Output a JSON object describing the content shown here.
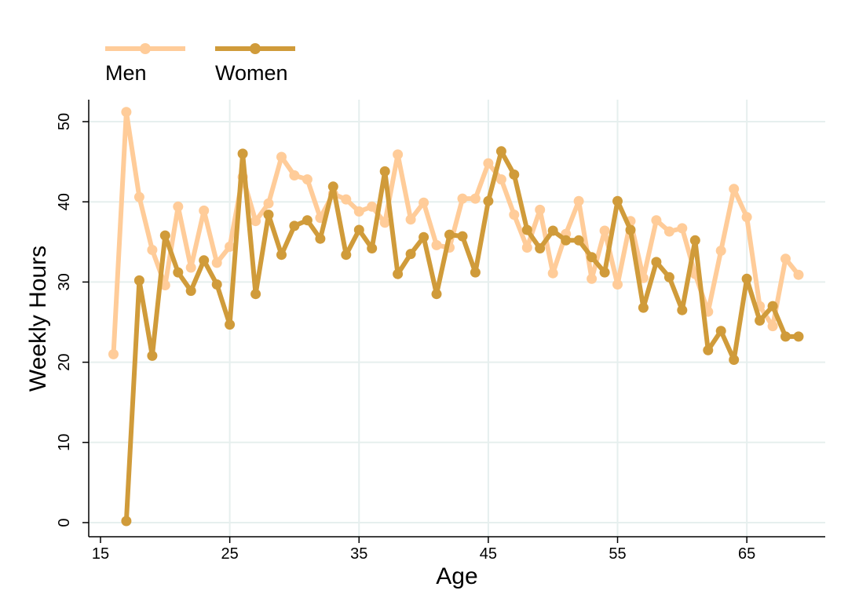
{
  "chart_data": {
    "type": "line",
    "title": "",
    "xlabel": "Age",
    "ylabel": "Weekly Hours",
    "xlim": [
      15,
      69
    ],
    "ylim": [
      0,
      52
    ],
    "xticks": [
      15,
      25,
      35,
      45,
      55,
      65
    ],
    "yticks": [
      0,
      10,
      20,
      30,
      40,
      50
    ],
    "grid": true,
    "legend_position": "top-left",
    "series": [
      {
        "name": "Men",
        "color": "#FFCC99",
        "points": [
          [
            16,
            21.0
          ],
          [
            17,
            51.2
          ],
          [
            18,
            40.6
          ],
          [
            19,
            34.0
          ],
          [
            20,
            29.6
          ],
          [
            21,
            39.4
          ],
          [
            22,
            31.8
          ],
          [
            23,
            38.9
          ],
          [
            24,
            32.4
          ],
          [
            25,
            34.4
          ],
          [
            26,
            43.1
          ],
          [
            27,
            37.6
          ],
          [
            28,
            39.8
          ],
          [
            29,
            45.6
          ],
          [
            30,
            43.3
          ],
          [
            31,
            42.8
          ],
          [
            32,
            38.0
          ],
          [
            33,
            41.0
          ],
          [
            34,
            40.3
          ],
          [
            35,
            38.8
          ],
          [
            36,
            39.4
          ],
          [
            37,
            37.4
          ],
          [
            38,
            45.9
          ],
          [
            39,
            37.8
          ],
          [
            40,
            39.9
          ],
          [
            41,
            34.6
          ],
          [
            42,
            34.3
          ],
          [
            43,
            40.4
          ],
          [
            44,
            40.4
          ],
          [
            45,
            44.8
          ],
          [
            46,
            42.8
          ],
          [
            47,
            38.4
          ],
          [
            48,
            34.3
          ],
          [
            49,
            39.0
          ],
          [
            50,
            31.1
          ],
          [
            51,
            36.0
          ],
          [
            52,
            40.1
          ],
          [
            53,
            30.4
          ],
          [
            54,
            36.4
          ],
          [
            55,
            29.7
          ],
          [
            56,
            37.6
          ],
          [
            57,
            30.5
          ],
          [
            58,
            37.7
          ],
          [
            59,
            36.3
          ],
          [
            60,
            36.7
          ],
          [
            61,
            31.0
          ],
          [
            62,
            26.3
          ],
          [
            63,
            33.9
          ],
          [
            64,
            41.6
          ],
          [
            65,
            38.1
          ],
          [
            66,
            27.0
          ],
          [
            67,
            24.5
          ],
          [
            68,
            32.9
          ],
          [
            69,
            30.9
          ]
        ]
      },
      {
        "name": "Women",
        "color": "#D09B3A",
        "points": [
          [
            17,
            0.2
          ],
          [
            18,
            30.2
          ],
          [
            19,
            20.8
          ],
          [
            20,
            35.8
          ],
          [
            21,
            31.2
          ],
          [
            22,
            28.9
          ],
          [
            23,
            32.7
          ],
          [
            24,
            29.7
          ],
          [
            25,
            24.7
          ],
          [
            26,
            46.0
          ],
          [
            27,
            28.5
          ],
          [
            28,
            38.4
          ],
          [
            29,
            33.4
          ],
          [
            30,
            37.0
          ],
          [
            31,
            37.7
          ],
          [
            32,
            35.4
          ],
          [
            33,
            41.9
          ],
          [
            34,
            33.4
          ],
          [
            35,
            36.5
          ],
          [
            36,
            34.2
          ],
          [
            37,
            43.8
          ],
          [
            38,
            31.0
          ],
          [
            39,
            33.5
          ],
          [
            40,
            35.6
          ],
          [
            41,
            28.5
          ],
          [
            42,
            35.9
          ],
          [
            43,
            35.7
          ],
          [
            44,
            31.2
          ],
          [
            45,
            40.1
          ],
          [
            46,
            46.3
          ],
          [
            47,
            43.4
          ],
          [
            48,
            36.5
          ],
          [
            49,
            34.2
          ],
          [
            50,
            36.4
          ],
          [
            51,
            35.2
          ],
          [
            52,
            35.2
          ],
          [
            53,
            33.1
          ],
          [
            54,
            31.2
          ],
          [
            55,
            40.1
          ],
          [
            56,
            36.5
          ],
          [
            57,
            26.8
          ],
          [
            58,
            32.5
          ],
          [
            59,
            30.6
          ],
          [
            60,
            26.5
          ],
          [
            61,
            35.2
          ],
          [
            62,
            21.5
          ],
          [
            63,
            23.9
          ],
          [
            64,
            20.3
          ],
          [
            65,
            30.4
          ],
          [
            66,
            25.2
          ],
          [
            67,
            27.0
          ],
          [
            68,
            23.2
          ],
          [
            69,
            23.2
          ]
        ]
      }
    ]
  }
}
